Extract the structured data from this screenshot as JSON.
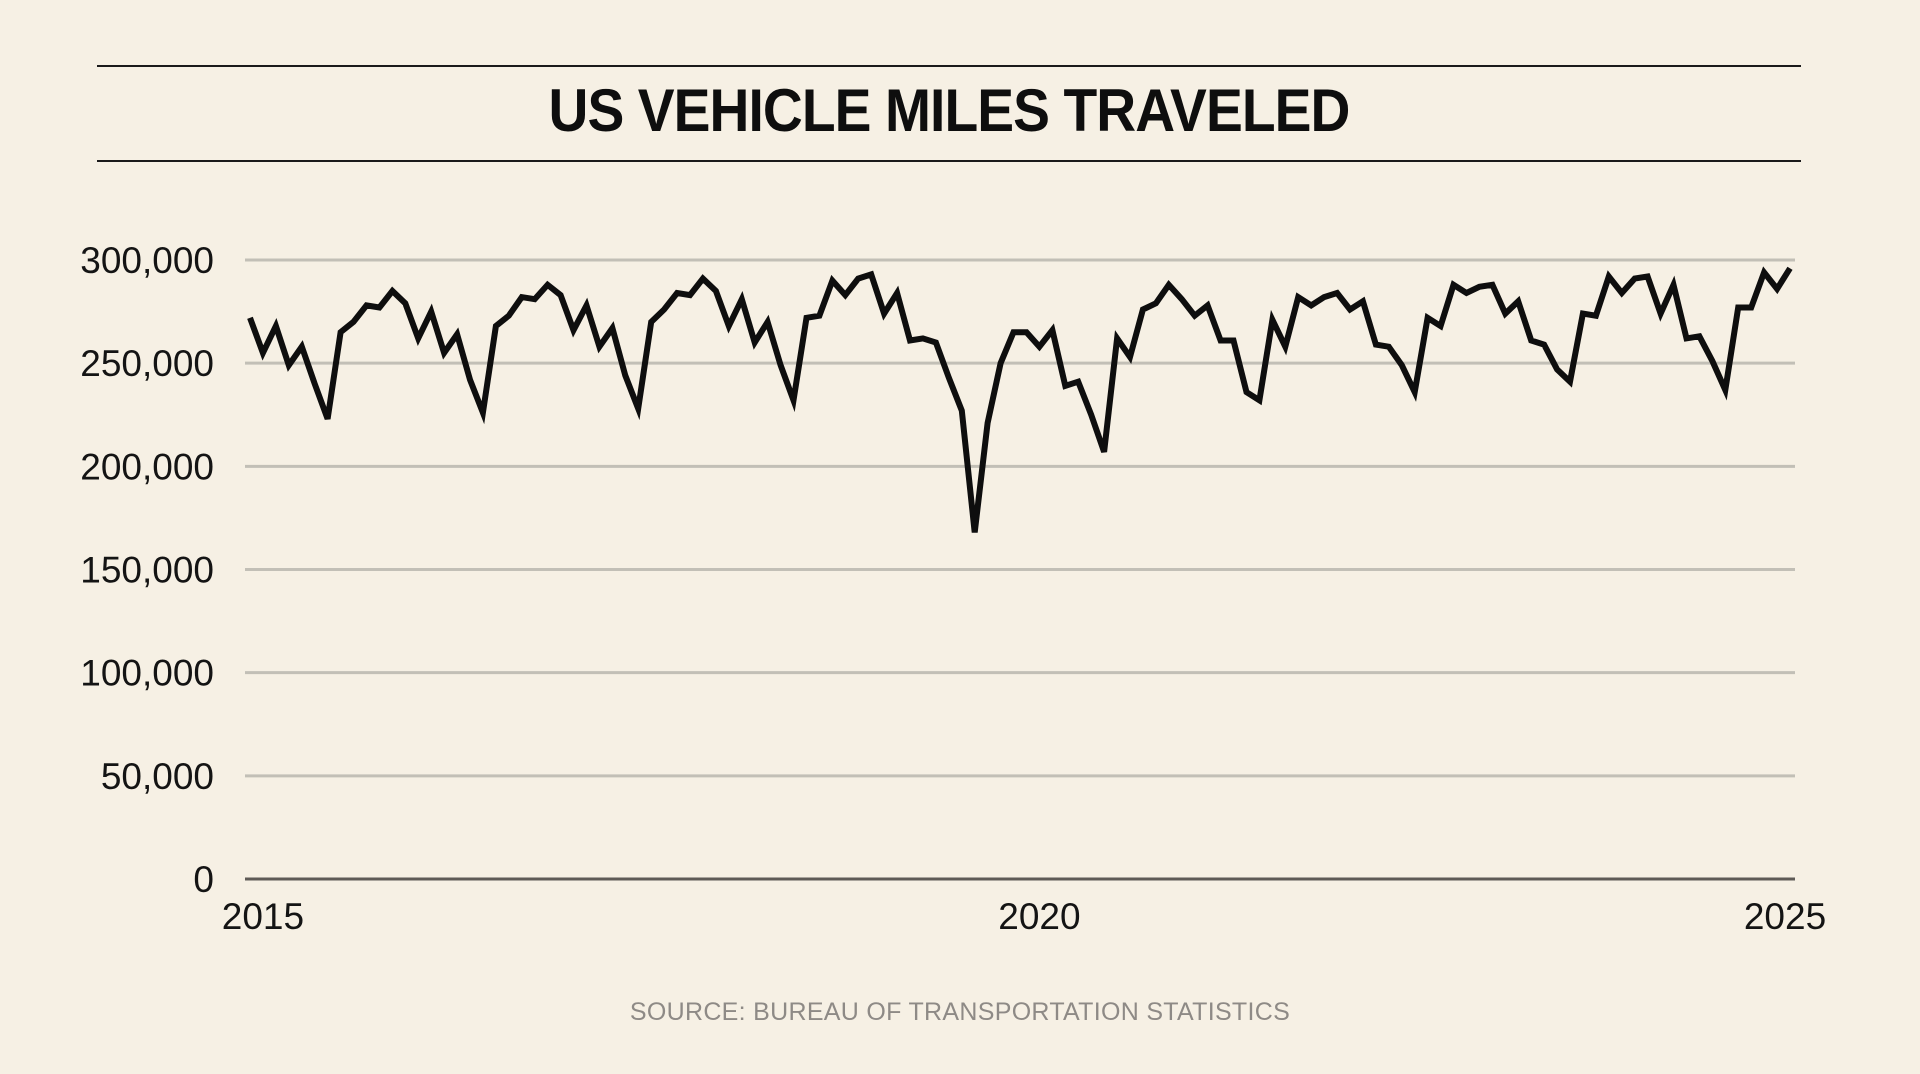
{
  "chart_data": {
    "type": "line",
    "title": "US VEHICLE MILES TRAVELED",
    "source": "SOURCE: BUREAU OF TRANSPORTATION STATISTICS",
    "xlabel": "",
    "ylabel": "",
    "ylim": [
      0,
      300000
    ],
    "yticks": [
      0,
      50000,
      100000,
      150000,
      200000,
      250000,
      300000
    ],
    "ytick_labels": [
      "0",
      "50,000",
      "100,000",
      "150,000",
      "200,000",
      "250,000",
      "300,000"
    ],
    "xticks": [
      2015,
      2020,
      2025
    ],
    "xtick_labels": [
      "2015",
      "2020",
      "2025"
    ],
    "grid": true,
    "line_color": "#0e0e0e",
    "grid_color": "#c2bfb6",
    "x_start": 2014.9167,
    "x_step_months": 1,
    "series": [
      {
        "name": "Vehicle miles traveled",
        "values": [
          272000,
          255000,
          268000,
          249000,
          258000,
          240000,
          223000,
          265000,
          270000,
          278000,
          277000,
          285000,
          279000,
          262000,
          275000,
          255000,
          264000,
          242000,
          226000,
          268000,
          273000,
          282000,
          281000,
          288000,
          283000,
          266000,
          278000,
          258000,
          267000,
          244000,
          228000,
          270000,
          276000,
          284000,
          283000,
          291000,
          285000,
          268000,
          281000,
          260000,
          270000,
          249000,
          232000,
          272000,
          273000,
          290000,
          283000,
          291000,
          293000,
          274000,
          284000,
          261000,
          262000,
          260000,
          243000,
          227000,
          168000,
          221000,
          250000,
          265000,
          265000,
          258000,
          266000,
          239000,
          241000,
          225000,
          207000,
          262000,
          253000,
          276000,
          279000,
          288000,
          281000,
          273000,
          278000,
          261000,
          261000,
          236000,
          232000,
          271000,
          258000,
          282000,
          278000,
          282000,
          284000,
          276000,
          280000,
          259000,
          258000,
          249000,
          236000,
          272000,
          268000,
          288000,
          284000,
          287000,
          288000,
          274000,
          280000,
          261000,
          259000,
          247000,
          241000,
          274000,
          273000,
          292000,
          284000,
          291000,
          292000,
          274000,
          288000,
          262000,
          263000,
          251000,
          237000,
          277000,
          277000,
          294000,
          286000,
          296000
        ]
      }
    ]
  }
}
